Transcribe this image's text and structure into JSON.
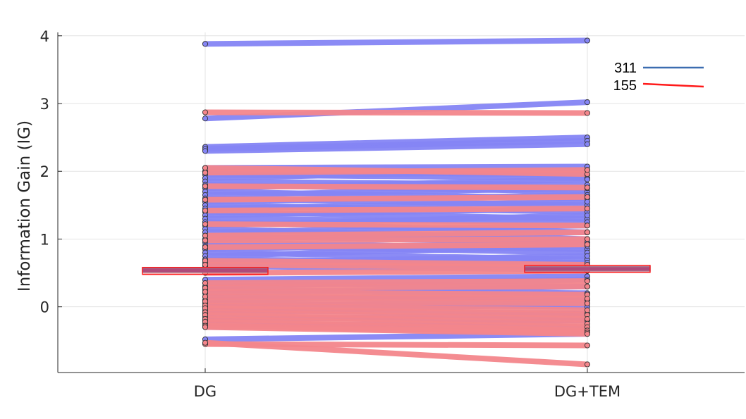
{
  "chart_data": {
    "type": "line",
    "title": "",
    "xlabel": "",
    "ylabel": "Information Gain (IG)",
    "categories": [
      "DG",
      "DG+TEM"
    ],
    "ylim": [
      -0.97,
      4.05
    ],
    "yticks": [
      0,
      1,
      2,
      3,
      4
    ],
    "grid": true,
    "legend_position": "top-right",
    "series": [
      {
        "name": "311",
        "color": "#3b6db0",
        "line_color": "#8585f5",
        "mean": [
          0.54,
          0.56
        ],
        "pairs": [
          [
            3.88,
            3.93
          ],
          [
            2.78,
            3.02
          ],
          [
            2.36,
            2.5
          ],
          [
            2.33,
            2.45
          ],
          [
            2.3,
            2.4
          ],
          [
            2.05,
            2.07
          ],
          [
            2.0,
            1.95
          ],
          [
            1.95,
            1.9
          ],
          [
            1.9,
            2.02
          ],
          [
            1.85,
            1.8
          ],
          [
            1.8,
            1.7
          ],
          [
            1.75,
            1.88
          ],
          [
            1.7,
            1.6
          ],
          [
            1.65,
            1.75
          ],
          [
            1.6,
            1.5
          ],
          [
            1.55,
            1.65
          ],
          [
            1.5,
            1.4
          ],
          [
            1.45,
            1.55
          ],
          [
            1.4,
            1.3
          ],
          [
            1.35,
            1.45
          ],
          [
            1.3,
            1.25
          ],
          [
            1.25,
            1.1
          ],
          [
            1.2,
            1.35
          ],
          [
            1.15,
            1.0
          ],
          [
            1.1,
            1.2
          ],
          [
            1.05,
            0.95
          ],
          [
            1.0,
            1.1
          ],
          [
            0.95,
            0.85
          ],
          [
            0.9,
            0.8
          ],
          [
            0.85,
            0.95
          ],
          [
            0.8,
            0.7
          ],
          [
            0.75,
            0.9
          ],
          [
            0.7,
            0.65
          ],
          [
            0.65,
            0.75
          ],
          [
            0.6,
            0.55
          ],
          [
            0.4,
            0.45
          ],
          [
            0.35,
            0.3
          ],
          [
            0.3,
            0.4
          ],
          [
            0.25,
            0.2
          ],
          [
            0.2,
            0.3
          ],
          [
            0.15,
            0.1
          ],
          [
            0.1,
            0.2
          ],
          [
            0.05,
            0.0
          ],
          [
            0.0,
            0.1
          ],
          [
            -0.05,
            -0.1
          ],
          [
            -0.1,
            0.05
          ],
          [
            -0.15,
            -0.2
          ],
          [
            -0.2,
            -0.1
          ],
          [
            -0.25,
            -0.3
          ],
          [
            -0.3,
            -0.2
          ],
          [
            -0.48,
            -0.4
          ]
        ]
      },
      {
        "name": "155",
        "color": "#ff1a1a",
        "line_color": "#f4868c",
        "mean": [
          0.53,
          0.56
        ],
        "pairs": [
          [
            2.87,
            2.86
          ],
          [
            2.05,
            1.96
          ],
          [
            1.98,
            2.02
          ],
          [
            1.78,
            1.76
          ],
          [
            1.58,
            1.62
          ],
          [
            1.42,
            1.45
          ],
          [
            1.22,
            1.2
          ],
          [
            1.05,
            1.1
          ],
          [
            0.98,
            1.0
          ],
          [
            0.88,
            0.92
          ],
          [
            0.68,
            0.62
          ],
          [
            0.62,
            0.58
          ],
          [
            0.5,
            0.53
          ],
          [
            0.35,
            0.38
          ],
          [
            0.28,
            0.3
          ],
          [
            0.22,
            0.18
          ],
          [
            0.15,
            0.12
          ],
          [
            0.08,
            0.05
          ],
          [
            0.02,
            -0.05
          ],
          [
            -0.02,
            -0.12
          ],
          [
            -0.08,
            -0.18
          ],
          [
            -0.12,
            -0.25
          ],
          [
            -0.18,
            -0.3
          ],
          [
            -0.22,
            -0.35
          ],
          [
            -0.28,
            -0.38
          ],
          [
            -0.3,
            -0.4
          ],
          [
            -0.55,
            -0.57
          ],
          [
            -0.53,
            -0.85
          ]
        ]
      }
    ]
  }
}
